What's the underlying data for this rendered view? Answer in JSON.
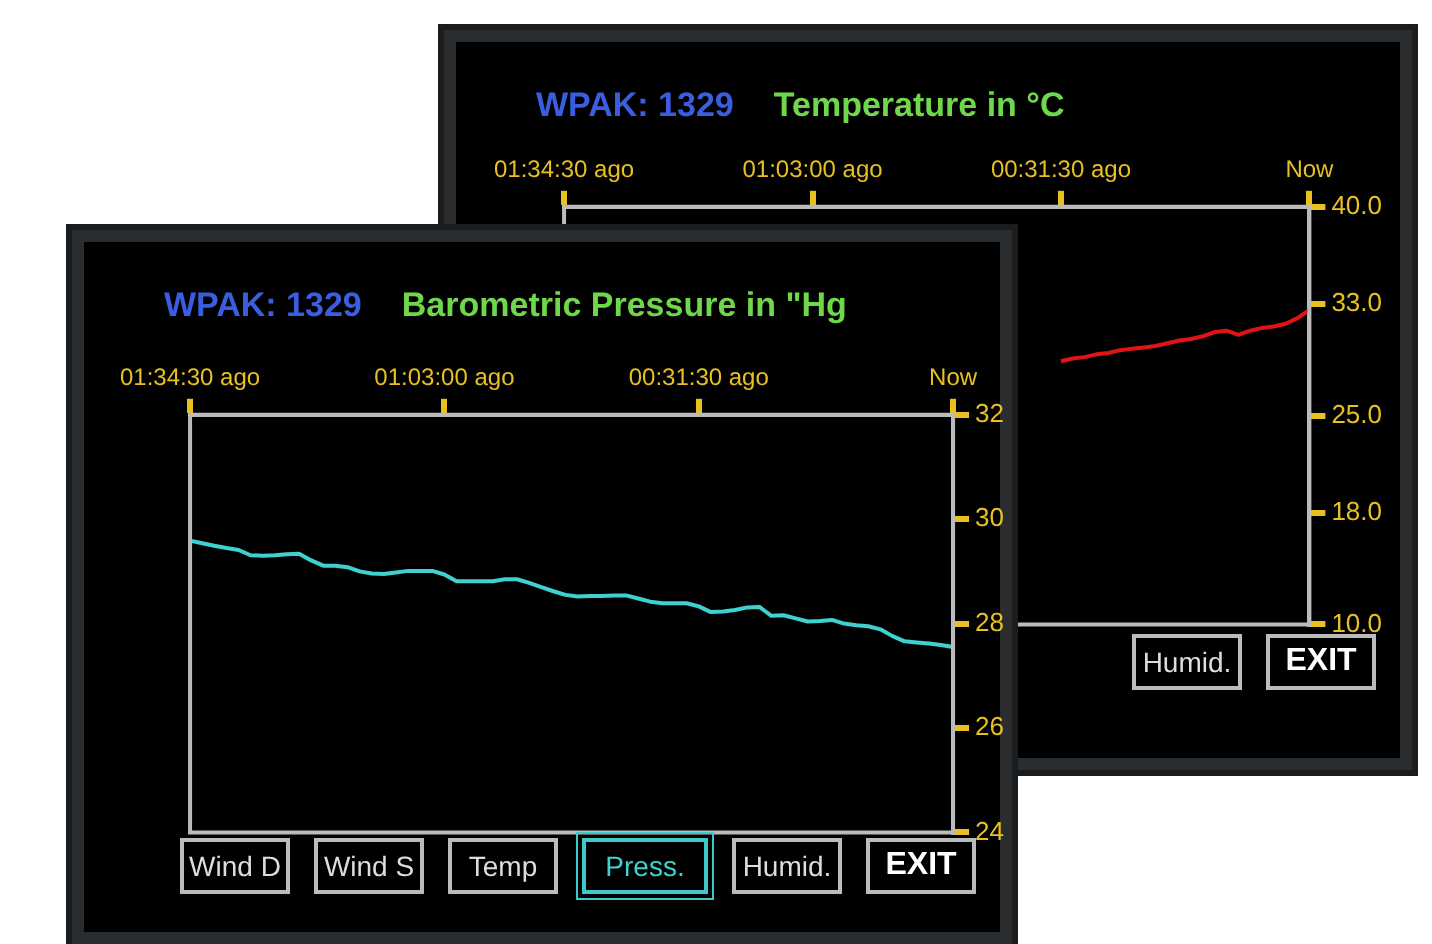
{
  "chart_data": [
    {
      "type": "line",
      "subtitle": "WPAK: 1329",
      "title": "Temperature in °C",
      "annotations": [
        "Humid.",
        "EXIT"
      ],
      "categories": [
        "01:34:30 ago",
        null,
        null,
        null,
        null,
        null,
        null,
        null,
        null,
        null,
        null,
        null,
        null,
        null,
        null,
        null,
        null,
        null,
        null,
        null,
        null,
        "01:03:00 ago",
        null,
        null,
        null,
        null,
        null,
        null,
        null,
        null,
        null,
        null,
        null,
        null,
        null,
        null,
        null,
        null,
        null,
        null,
        null,
        null,
        "00:31:30 ago",
        null,
        null,
        null,
        null,
        null,
        null,
        null,
        null,
        null,
        null,
        null,
        null,
        null,
        null,
        null,
        null,
        null,
        null,
        null,
        null,
        "Now"
      ],
      "ylim": [
        10,
        40
      ],
      "yticks": [
        {
          "value": 10,
          "label": "10.0"
        },
        {
          "value": 18,
          "label": "18.0"
        },
        {
          "value": 25,
          "label": "25.0"
        },
        {
          "value": 33,
          "label": "33.0"
        },
        {
          "value": 40,
          "label": "40.0"
        }
      ],
      "series": [
        {
          "color": "#e01414",
          "values": [
            null,
            null,
            null,
            null,
            null,
            null,
            null,
            null,
            null,
            null,
            null,
            null,
            null,
            null,
            null,
            null,
            null,
            null,
            null,
            null,
            null,
            null,
            null,
            null,
            null,
            null,
            null,
            null,
            null,
            null,
            null,
            null,
            null,
            null,
            null,
            null,
            null,
            null,
            null,
            null,
            null,
            null,
            28.9,
            29.1,
            29.2,
            29.4,
            29.5,
            29.7,
            29.8,
            29.9,
            30.0,
            30.2,
            30.4,
            30.5,
            30.7,
            31.0,
            31.1,
            30.8,
            31.1,
            31.3,
            31.4,
            31.6,
            32.0,
            32.6
          ]
        }
      ]
    },
    {
      "type": "line",
      "subtitle": "WPAK: 1329",
      "title": "Barometric Pressure in \"Hg",
      "annotations": [
        "Wind D",
        "Wind S",
        "Temp",
        "Press.",
        "Humid.",
        "EXIT"
      ],
      "categories": [
        "01:34:30 ago",
        null,
        null,
        null,
        null,
        null,
        null,
        null,
        null,
        null,
        null,
        null,
        null,
        null,
        null,
        null,
        null,
        null,
        null,
        null,
        null,
        "01:03:00 ago",
        null,
        null,
        null,
        null,
        null,
        null,
        null,
        null,
        null,
        null,
        null,
        null,
        null,
        null,
        null,
        null,
        null,
        null,
        null,
        null,
        "00:31:30 ago",
        null,
        null,
        null,
        null,
        null,
        null,
        null,
        null,
        null,
        null,
        null,
        null,
        null,
        null,
        null,
        null,
        null,
        null,
        null,
        null,
        "Now"
      ],
      "ylim": [
        24,
        32
      ],
      "yticks": [
        24,
        26,
        28,
        30,
        32
      ],
      "series": [
        {
          "color": "#40d0d0",
          "values": [
            29.59,
            29.54,
            29.49,
            29.45,
            29.41,
            29.31,
            29.3,
            29.31,
            29.33,
            29.34,
            29.21,
            29.11,
            29.11,
            29.08,
            29.0,
            28.96,
            28.95,
            28.98,
            29.01,
            29.01,
            29.01,
            28.94,
            28.81,
            28.81,
            28.81,
            28.81,
            28.85,
            28.85,
            28.78,
            28.7,
            28.62,
            28.55,
            28.52,
            28.53,
            28.53,
            28.54,
            28.54,
            28.48,
            28.42,
            28.39,
            28.39,
            28.39,
            28.33,
            28.22,
            28.23,
            28.26,
            28.31,
            28.32,
            28.15,
            28.16,
            28.1,
            28.04,
            28.05,
            28.07,
            28.0,
            27.97,
            27.95,
            27.89,
            27.76,
            27.66,
            27.64,
            27.62,
            27.59,
            27.55
          ]
        }
      ]
    }
  ]
}
